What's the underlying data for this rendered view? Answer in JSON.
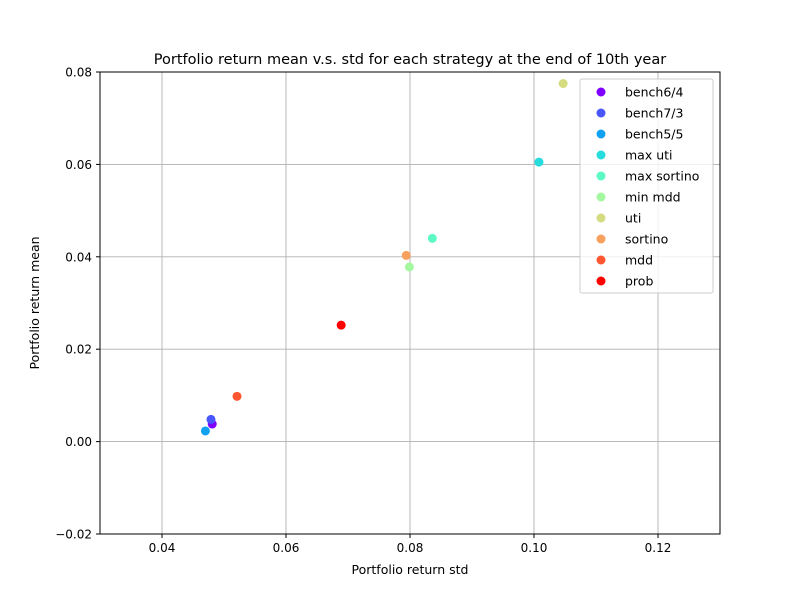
{
  "chart_data": {
    "type": "scatter",
    "title": "Portfolio return mean v.s. std for each strategy at the end of 10th year",
    "xlabel": "Portfolio return std",
    "ylabel": "Portfolio return mean",
    "xlim": [
      0.03,
      0.13
    ],
    "ylim": [
      -0.02,
      0.08
    ],
    "xticks": [
      0.04,
      0.06,
      0.08,
      0.1,
      0.12
    ],
    "xtick_labels": [
      "0.04",
      "0.06",
      "0.08",
      "0.10",
      "0.12"
    ],
    "yticks": [
      -0.02,
      0.0,
      0.02,
      0.04,
      0.06,
      0.08
    ],
    "ytick_labels": [
      "−0.02",
      "0.00",
      "0.02",
      "0.04",
      "0.06",
      "0.08"
    ],
    "grid": true,
    "legend_position": "upper-right",
    "series": [
      {
        "name": "bench6/4",
        "color": "#8000ff",
        "x": 0.0481,
        "y": 0.0038
      },
      {
        "name": "bench7/3",
        "color": "#4856fb",
        "x": 0.0479,
        "y": 0.0048
      },
      {
        "name": "bench5/5",
        "color": "#10a2f0",
        "x": 0.047,
        "y": 0.0023
      },
      {
        "name": "max uti",
        "color": "#26dcdd",
        "x": 0.1008,
        "y": 0.0605
      },
      {
        "name": "max sortino",
        "color": "#5cf8c6",
        "x": 0.0836,
        "y": 0.044
      },
      {
        "name": "min mdd",
        "color": "#a4f89f",
        "x": 0.0799,
        "y": 0.0378
      },
      {
        "name": "uti",
        "color": "#d4dc7f",
        "x": 0.1047,
        "y": 0.0775
      },
      {
        "name": "sortino",
        "color": "#f8a05e",
        "x": 0.0794,
        "y": 0.0403
      },
      {
        "name": "mdd",
        "color": "#ff5530",
        "x": 0.0521,
        "y": 0.0098
      },
      {
        "name": "prob",
        "color": "#ff0000",
        "x": 0.0689,
        "y": 0.0252
      }
    ]
  }
}
